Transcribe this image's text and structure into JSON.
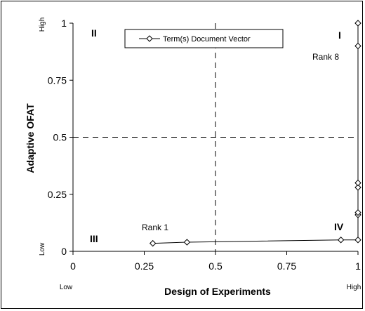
{
  "chart_data": {
    "type": "scatter",
    "xlabel": "Design of Experiments",
    "ylabel": "Adaptive OFAT",
    "xlim": [
      0,
      1
    ],
    "ylim": [
      0,
      1
    ],
    "x_ticks": [
      "0",
      "0.25",
      "0.5",
      "0.75",
      "1"
    ],
    "y_ticks": [
      "0",
      "0.25",
      "0.5",
      "0.75",
      "1"
    ],
    "x_tick_values": [
      0,
      0.25,
      0.5,
      0.75,
      1
    ],
    "y_tick_values": [
      0,
      0.25,
      0.5,
      0.75,
      1
    ],
    "x_low_label": "Low",
    "x_high_label": "High",
    "y_low_label": "Low",
    "y_high_label": "High",
    "divider_x": 0.5,
    "divider_y": 0.5,
    "quadrants": [
      {
        "label": "I",
        "position": "top-right"
      },
      {
        "label": "II",
        "position": "top-left"
      },
      {
        "label": "III",
        "position": "bottom-left"
      },
      {
        "label": "IV",
        "position": "bottom-right"
      }
    ],
    "annotations": [
      {
        "text": "Rank 8",
        "x": 0.98,
        "y": 0.86
      },
      {
        "text": "Rank 1",
        "x": 0.36,
        "y": 0.1
      }
    ],
    "legend": {
      "placement": "top-center",
      "entries": [
        "Term(s) Document Vector"
      ]
    },
    "series": [
      {
        "name": "Term(s) Document Vector",
        "marker": "diamond",
        "color": "#000000",
        "points": [
          {
            "x": 0.28,
            "y": 0.035
          },
          {
            "x": 0.4,
            "y": 0.04
          },
          {
            "x": 0.94,
            "y": 0.05
          },
          {
            "x": 1.0,
            "y": 0.05
          },
          {
            "x": 1.0,
            "y": 0.16
          },
          {
            "x": 1.0,
            "y": 0.17
          },
          {
            "x": 1.0,
            "y": 0.28
          },
          {
            "x": 1.0,
            "y": 0.3
          },
          {
            "x": 1.0,
            "y": 0.9
          },
          {
            "x": 1.0,
            "y": 1.0
          }
        ]
      }
    ]
  }
}
